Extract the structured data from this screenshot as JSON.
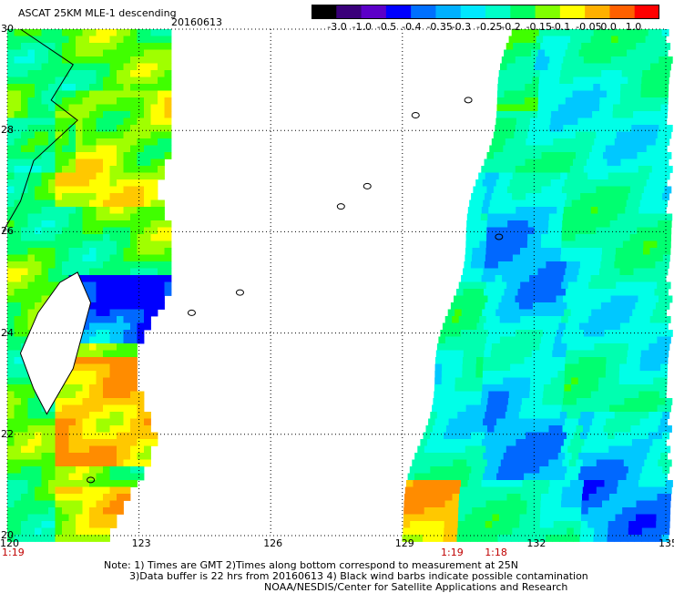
{
  "header": {
    "title": "ASCAT 25KM MLE-1 descending",
    "date": "20160613"
  },
  "colorbar": {
    "labels": [
      "-3.0",
      "-1.0",
      "-0.5",
      "-0.4",
      "-0.35",
      "-0.3",
      "-0.25",
      "-0.2",
      "-0.15",
      "-0.1",
      "-0.05",
      "0.0",
      "1.0"
    ],
    "colors": [
      "#000000",
      "#3a007a",
      "#5c00c8",
      "#0000ff",
      "#0070ff",
      "#00b0ff",
      "#00e8ff",
      "#00ffc8",
      "#00ff60",
      "#80ff00",
      "#ffff00",
      "#ffb000",
      "#ff6000",
      "#ff0000"
    ]
  },
  "map": {
    "lon_ticks": [
      "120",
      "123",
      "126",
      "129",
      "132",
      "135"
    ],
    "lat_ticks": [
      "20",
      "22",
      "24",
      "26",
      "28",
      "30"
    ],
    "lon_range": [
      120,
      135
    ],
    "lat_range": [
      20,
      30
    ],
    "grid": true
  },
  "time_labels": [
    {
      "text": "1:19",
      "lon": 120.0
    },
    {
      "text": "1:19",
      "lon": 130.0
    },
    {
      "text": "1:18",
      "lon": 131.0
    }
  ],
  "footer": {
    "line1": "Note: 1) Times are GMT 2)Times along bottom correspond to measurement at 25N",
    "line2": "3)Data buffer is 22 hrs from 20160613 4) Black wind barbs indicate possible contamination",
    "line3": "NOAA/NESDIS/Center for Satellite Applications and Research"
  }
}
